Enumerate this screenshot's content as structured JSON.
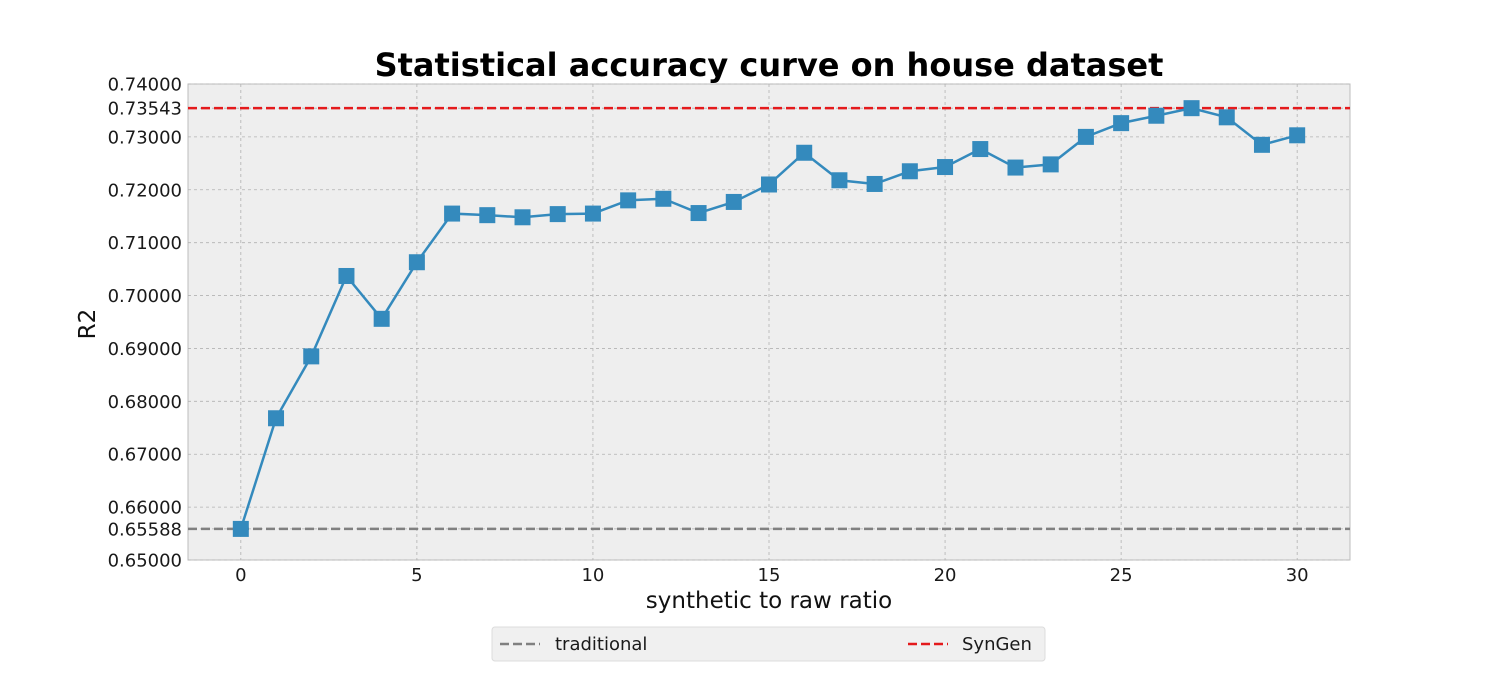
{
  "chart_data": {
    "type": "line",
    "title": "Statistical accuracy curve on house dataset",
    "xlabel": "synthetic to raw ratio",
    "ylabel": "R2",
    "xlim": [
      -1.5,
      31.5
    ],
    "ylim": [
      0.65,
      0.74
    ],
    "x_ticks": [
      0,
      5,
      10,
      15,
      20,
      25,
      30
    ],
    "y_ticks": [
      0.65,
      0.65588,
      0.66,
      0.67,
      0.68,
      0.69,
      0.7,
      0.71,
      0.72,
      0.73,
      0.73543,
      0.74
    ],
    "y_tick_labels": [
      "0.65000",
      "0.65588",
      "0.66000",
      "0.67000",
      "0.68000",
      "0.69000",
      "0.70000",
      "0.71000",
      "0.72000",
      "0.73000",
      "0.73543",
      "0.74000"
    ],
    "grid": true,
    "legend_position": "bottom-center",
    "series": [
      {
        "marker": "square",
        "color": "#348ABD",
        "x": [
          0,
          1,
          2,
          3,
          4,
          5,
          6,
          7,
          8,
          9,
          10,
          11,
          12,
          13,
          14,
          15,
          16,
          17,
          18,
          19,
          20,
          21,
          22,
          23,
          24,
          25,
          26,
          27,
          28,
          29,
          30
        ],
        "y": [
          0.65588,
          0.6768,
          0.6885,
          0.7037,
          0.6956,
          0.7063,
          0.7155,
          0.7152,
          0.7148,
          0.7154,
          0.7155,
          0.718,
          0.7183,
          0.7156,
          0.7177,
          0.721,
          0.727,
          0.7218,
          0.7211,
          0.7235,
          0.7243,
          0.7277,
          0.7242,
          0.7248,
          0.73,
          0.7326,
          0.734,
          0.73543,
          0.7337,
          0.7285,
          0.7303
        ]
      }
    ],
    "reference_lines": [
      {
        "name": "traditional",
        "y": 0.65588,
        "color": "#808080",
        "style": "dashed"
      },
      {
        "name": "SynGen",
        "y": 0.73543,
        "color": "#e41a1c",
        "style": "dashed"
      }
    ]
  }
}
